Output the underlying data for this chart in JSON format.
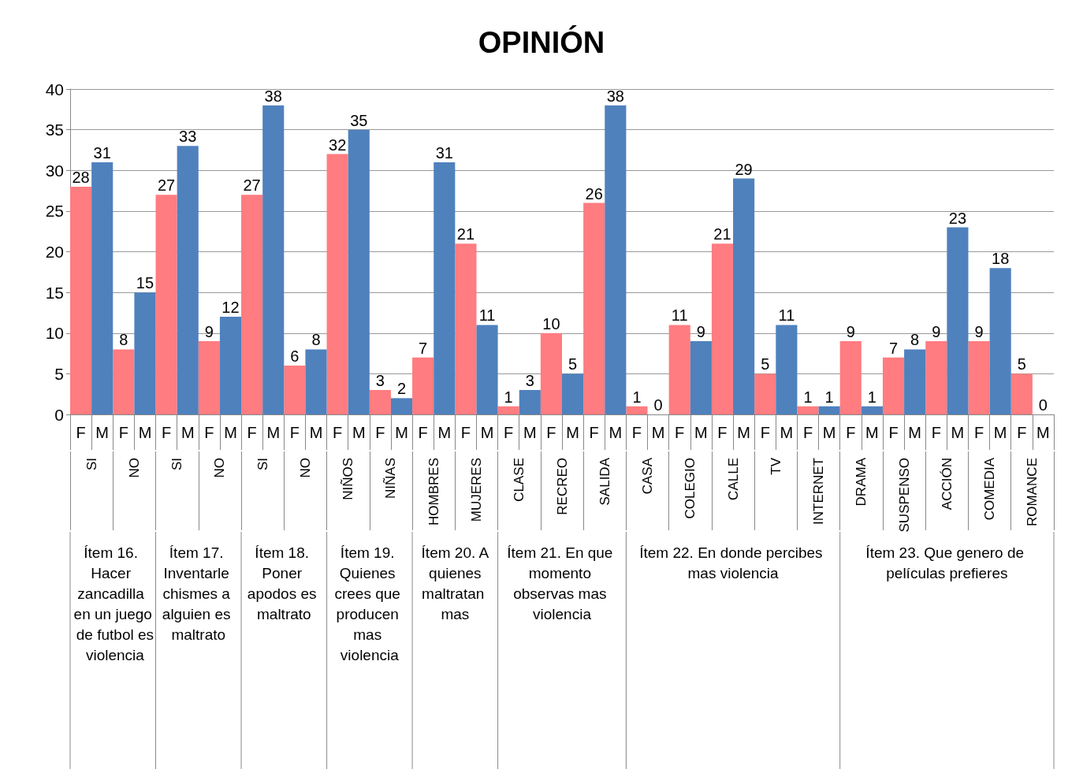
{
  "chart_data": {
    "type": "bar",
    "title": "OPINIÓN",
    "categories": [
      "SI",
      "NO",
      "SI",
      "NO",
      "SI",
      "NO",
      "NIÑOS",
      "NIÑAS",
      "HOMBRES",
      "MUJERES",
      "CLASE",
      "RECREO",
      "SALIDA",
      "CASA",
      "COLEGIO",
      "CALLE",
      "TV",
      "INTERNET",
      "DRAMA",
      "SUSPENSO",
      "ACCIÓN",
      "COMEDIA",
      "ROMANCE"
    ],
    "series": [
      {
        "name": "F",
        "color": "#ff7c80",
        "values": [
          28,
          8,
          27,
          9,
          27,
          6,
          32,
          3,
          7,
          21,
          1,
          10,
          26,
          1,
          11,
          21,
          5,
          1,
          9,
          7,
          9,
          9,
          5
        ]
      },
      {
        "name": "M",
        "color": "#4f81bd",
        "values": [
          31,
          15,
          33,
          12,
          38,
          8,
          35,
          2,
          31,
          11,
          3,
          5,
          38,
          0,
          9,
          29,
          11,
          1,
          1,
          8,
          23,
          18,
          0
        ]
      }
    ],
    "ylim": [
      0,
      40
    ],
    "yticks": [
      0,
      5,
      10,
      15,
      20,
      25,
      30,
      35,
      40
    ],
    "grid": "y",
    "data_labels": true,
    "annotations": [
      "Ítem 16. Hacer zancadilla en un juego de futbol es violencia",
      "Ítem 17. Inventarle chismes a alguien es maltrato",
      "Ítem 18. Poner apodos es maltrato",
      "Ítem 19. Quienes crees que producen mas violencia",
      "Ítem 20. A quienes maltratan mas",
      "Ítem 21. En que momento observas mas violencia",
      "Ítem 22. En donde percibes mas violencia",
      "Ítem 23. Que genero de películas prefieres"
    ]
  }
}
